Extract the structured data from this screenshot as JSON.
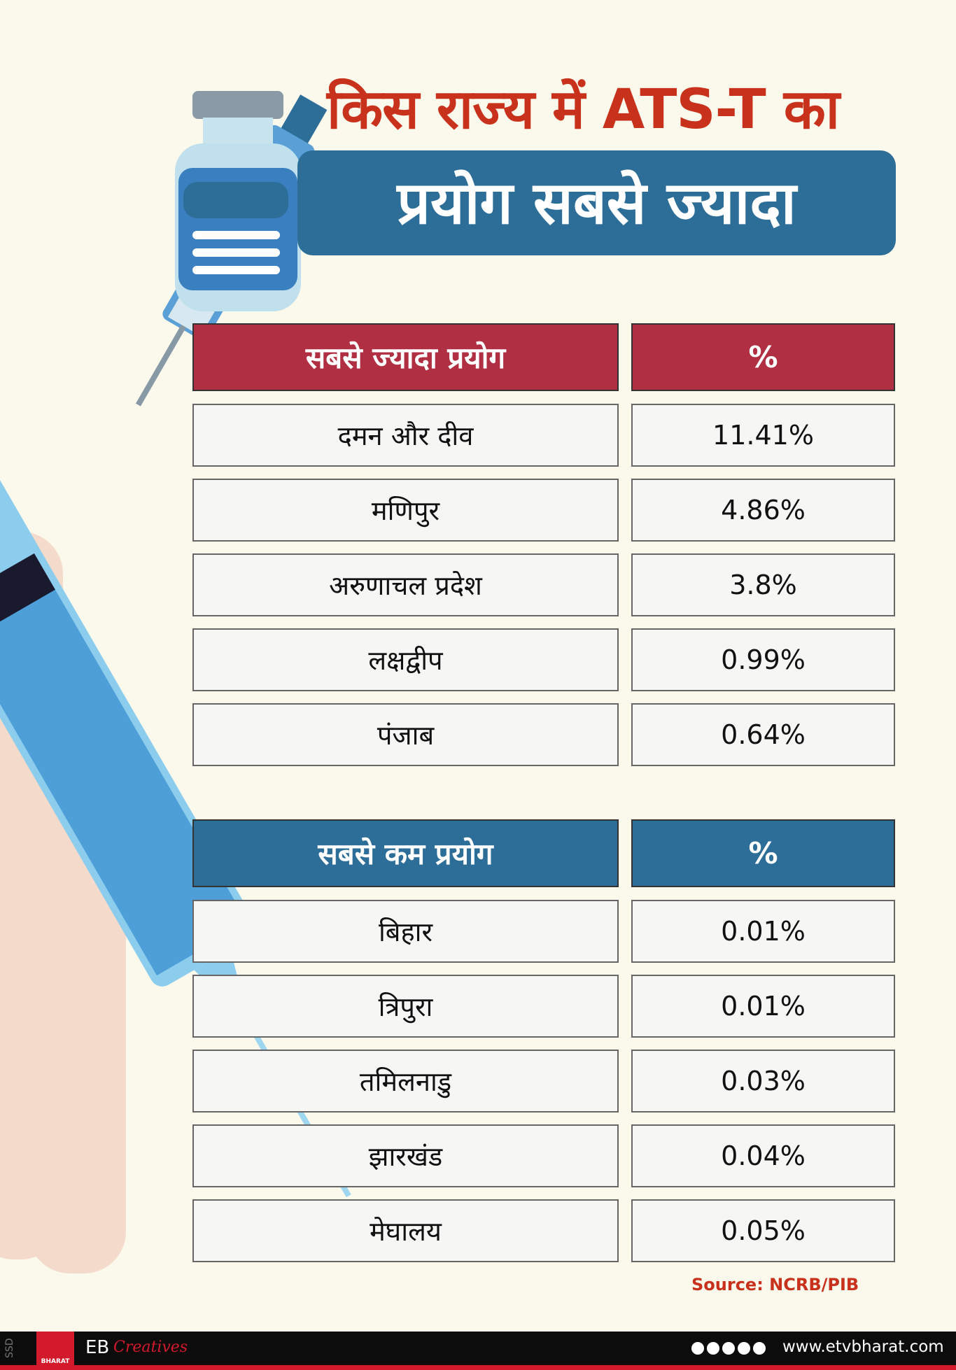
{
  "header": {
    "title_line1": "किस राज्य में ATS-T का",
    "title_line2": "प्रयोग सबसे ज्यादा"
  },
  "tables": [
    {
      "header": [
        "सबसे ज्यादा प्रयोग",
        "%"
      ],
      "rows": [
        [
          "दमन और दीव",
          "11.41%"
        ],
        [
          "मणिपुर",
          "4.86%"
        ],
        [
          "अरुणाचल प्रदेश",
          "3.8%"
        ],
        [
          "लक्षद्वीप",
          "0.99%"
        ],
        [
          "पंजाब",
          "0.64%"
        ]
      ]
    },
    {
      "header": [
        "सबसे कम प्रयोग",
        "%"
      ],
      "rows": [
        [
          "बिहार",
          "0.01%"
        ],
        [
          "त्रिपुरा",
          "0.01%"
        ],
        [
          "तमिलनाडु",
          "0.03%"
        ],
        [
          "झारखंड",
          "0.04%"
        ],
        [
          "मेघालय",
          "0.05%"
        ]
      ]
    }
  ],
  "source": "Source: NCRB/PIB",
  "footer": {
    "tag": "SSD",
    "logo": "BHARAT",
    "brand": "EB",
    "brand_script": "Creatives",
    "website": "www.etvbharat.com"
  }
}
